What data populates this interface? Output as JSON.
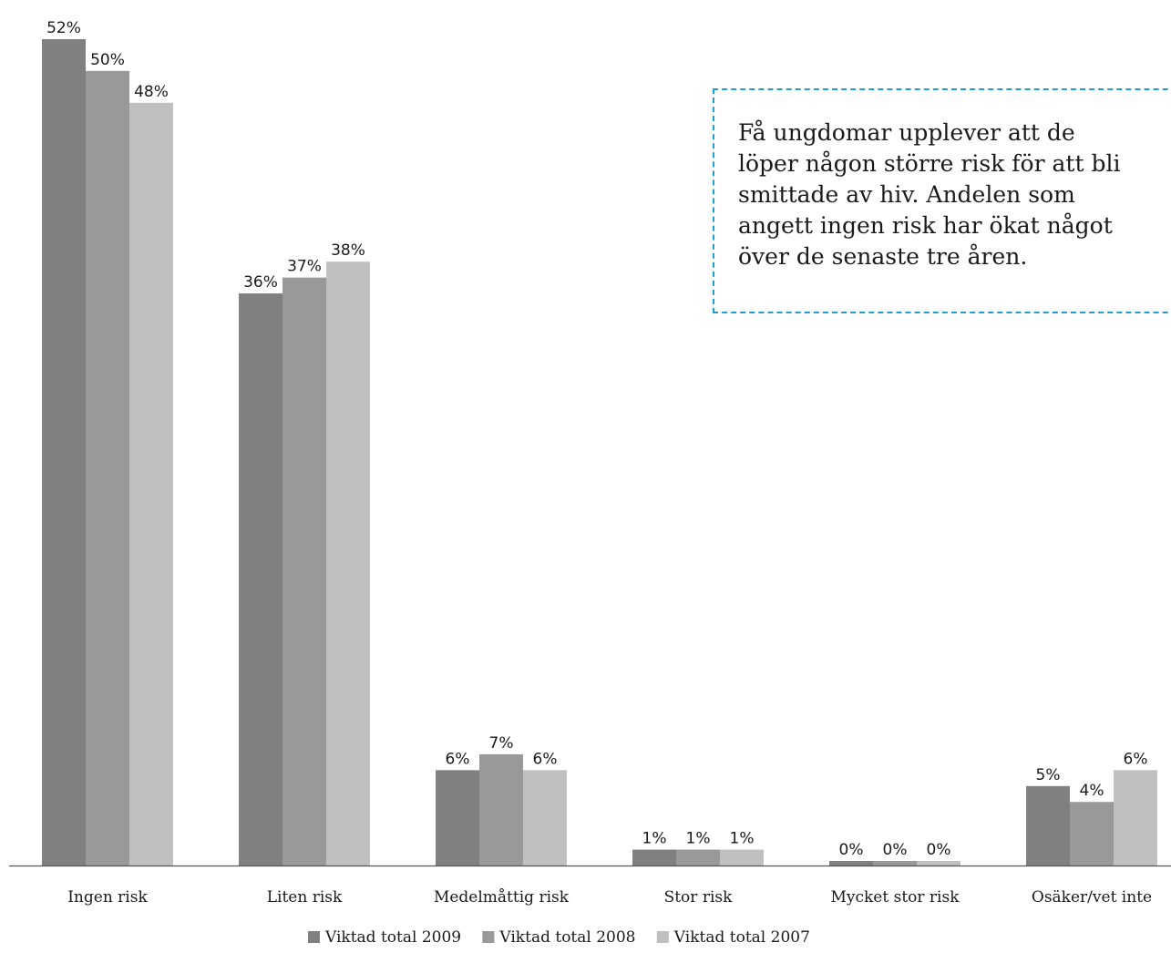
{
  "chart_data": {
    "type": "bar",
    "categories": [
      "Ingen risk",
      "Liten risk",
      "Medelmåttig risk",
      "Stor risk",
      "Mycket stor risk",
      "Osäker/vet inte"
    ],
    "series": [
      {
        "name": "Viktad total 2009",
        "values": [
          52,
          36,
          6,
          1,
          0,
          5
        ],
        "labels": [
          "52%",
          "36%",
          "6%",
          "1%",
          "0%",
          "5%"
        ],
        "color": "#808080"
      },
      {
        "name": "Viktad total 2008",
        "values": [
          50,
          37,
          7,
          1,
          0,
          4
        ],
        "labels": [
          "50%",
          "37%",
          "7%",
          "1%",
          "0%",
          "4%"
        ],
        "color": "#999999"
      },
      {
        "name": "Viktad total 2007",
        "values": [
          48,
          38,
          6,
          1,
          0,
          6
        ],
        "labels": [
          "48%",
          "38%",
          "6%",
          "1%",
          "0%",
          "6%"
        ],
        "color": "#c0c0c0"
      }
    ],
    "ylim": [
      0,
      52
    ],
    "grid": false,
    "legend_position": "bottom-center",
    "title": "",
    "xlabel": "",
    "ylabel": ""
  },
  "callout": {
    "text": "Få ungdomar upplever att de\nlöper någon större risk för att bli\nsmittade av hiv. Andelen som\nangett ingen risk har ökat något\növer de senaste tre åren.",
    "border_color": "#1e9fd1"
  }
}
